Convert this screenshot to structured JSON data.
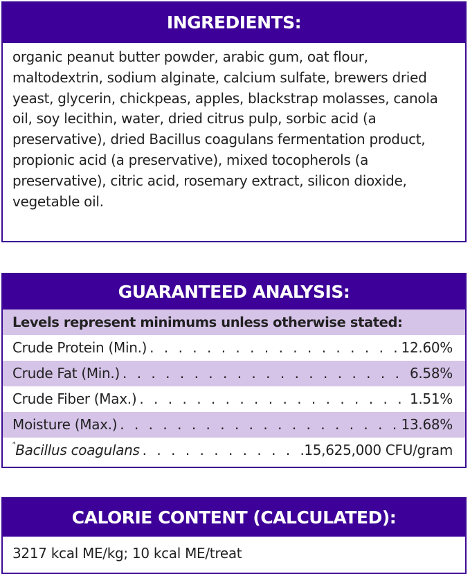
{
  "ingredients": {
    "title": "INGREDIENTS:",
    "text": "organic peanut butter powder, arabic gum, oat flour, maltodextrin, sodium alginate, calcium sulfate, brewers dried yeast, glycerin, chickpeas, apples, blackstrap molasses, canola oil, soy lecithin, water, dried citrus pulp, sorbic acid (a preservative), dried Bacillus coagulans fermentation product, propionic acid (a preservative), mixed tocopherols (a preservative), citric acid, rosemary extract, silicon dioxide, vegetable oil."
  },
  "analysis": {
    "title": "GUARANTEED ANALYSIS:",
    "subtitle": "Levels represent minimums unless otherwise stated:",
    "rows": [
      {
        "label": "Crude Protein (Min.)",
        "value": "12.60%"
      },
      {
        "label": "Crude Fat (Min.)",
        "value": "6.58%"
      },
      {
        "label": "Crude Fiber (Max.)",
        "value": "1.51%"
      },
      {
        "label": "Moisture (Max.)",
        "value": "13.68%"
      },
      {
        "marker": "*",
        "label": "Bacillus coagulans",
        "value": "15,625,000 CFU/gram"
      }
    ]
  },
  "calorie": {
    "title": "CALORIE CONTENT (CALCULATED):",
    "text": "3217 kcal ME/kg; 10 kcal ME/treat"
  },
  "colors": {
    "header": "#3d0099",
    "stripe": "#d5c3e8"
  }
}
